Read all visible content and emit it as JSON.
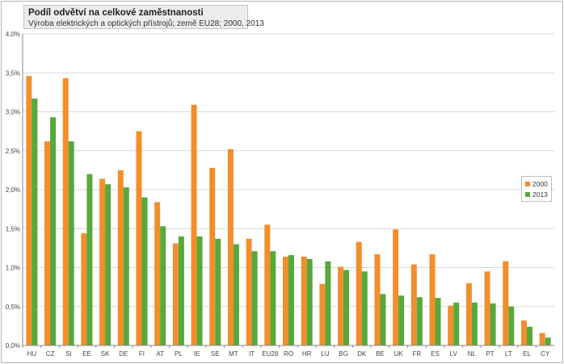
{
  "chart_data": {
    "type": "bar",
    "title": "Podíl odvětví na celkové zaměstnanosti",
    "subtitle": "Výroba elektrických a optických přístrojů; země EU28; 2000, 2013",
    "categories": [
      "HU",
      "CZ",
      "SI",
      "EE",
      "SK",
      "DE",
      "FI",
      "AT",
      "PL",
      "IE",
      "SE",
      "MT",
      "IT",
      "EU28",
      "RO",
      "HR",
      "LU",
      "BG",
      "DK",
      "BE",
      "UK",
      "FR",
      "ES",
      "LV",
      "NL",
      "PT",
      "LT",
      "EL",
      "CY"
    ],
    "series": [
      {
        "name": "2000",
        "color": "#f28e2b",
        "values": [
          3.46,
          2.62,
          3.43,
          1.44,
          2.14,
          2.25,
          2.75,
          1.84,
          1.31,
          3.09,
          2.28,
          2.52,
          1.37,
          1.55,
          1.14,
          1.14,
          0.79,
          1.01,
          1.33,
          1.17,
          1.49,
          1.04,
          1.17,
          0.51,
          0.8,
          0.95,
          1.08,
          0.32,
          0.16
        ]
      },
      {
        "name": "2013",
        "color": "#58a83a",
        "values": [
          3.17,
          2.93,
          2.62,
          2.2,
          2.07,
          2.03,
          1.9,
          1.53,
          1.4,
          1.4,
          1.37,
          1.3,
          1.21,
          1.21,
          1.16,
          1.11,
          1.08,
          0.97,
          0.95,
          0.66,
          0.64,
          0.62,
          0.61,
          0.55,
          0.55,
          0.54,
          0.5,
          0.24,
          0.1
        ]
      }
    ],
    "yticks": [
      "0,0%",
      "0,5%",
      "1,0%",
      "1,5%",
      "2,0%",
      "2,5%",
      "3,0%",
      "3,5%",
      "4,0%"
    ],
    "ylim": [
      0,
      4.0
    ],
    "ystep": 0.5,
    "grid": true,
    "legend_position": "right"
  }
}
